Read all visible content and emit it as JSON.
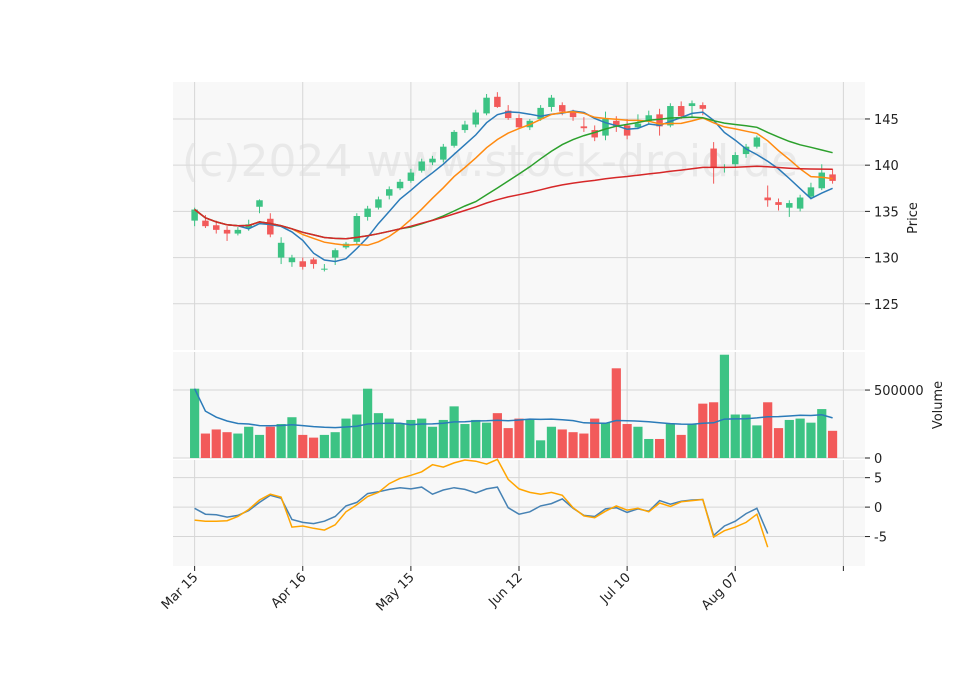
{
  "watermark": "(c)2024 www.stock-droid.de",
  "colors": {
    "up": "#3cc384",
    "down": "#f25a5a",
    "sma_blue": "#2b7bb9",
    "sma_orange": "#ff8a10",
    "sma_green": "#2ca02c",
    "sma_red": "#d62728",
    "vol_ma": "#2b7bb9",
    "osc_blue": "#4682b4",
    "osc_orange": "#ffa500",
    "panel_bg": "#f8f8f8",
    "grid": "#d6d6d6"
  },
  "chart_data": [
    {
      "type": "candlestick",
      "panel": "price",
      "ylabel": "Price",
      "ylim": [
        120,
        149
      ],
      "yticks": [
        125,
        130,
        135,
        140,
        145
      ],
      "xlim": [
        -2,
        62
      ],
      "x_tick_positions": [
        0,
        10,
        20,
        30,
        40,
        50,
        60
      ],
      "x_tick_labels": [
        "Mar 15",
        "Apr 16",
        "May 15",
        "Jun 12",
        "Jul 10",
        "Aug 07",
        ""
      ],
      "ohlc": [
        [
          0,
          134,
          135.4,
          133.4,
          135.2
        ],
        [
          1,
          134,
          134.6,
          133.2,
          133.4
        ],
        [
          2,
          133.5,
          134,
          132.6,
          133
        ],
        [
          3,
          133,
          133.4,
          131.8,
          132.6
        ],
        [
          4,
          132.6,
          133.3,
          132.4,
          133
        ],
        [
          5,
          133.2,
          134.1,
          132.9,
          133.6
        ],
        [
          6,
          135.5,
          136.3,
          134.8,
          136.2
        ],
        [
          7,
          134.2,
          134.8,
          132.2,
          132.5
        ],
        [
          8,
          130,
          132.2,
          129.3,
          131.6
        ],
        [
          9,
          129.5,
          130.3,
          129,
          130
        ],
        [
          10,
          129.6,
          130,
          128.7,
          129
        ],
        [
          11,
          129.8,
          130,
          128.8,
          129.3
        ],
        [
          12,
          128.8,
          129.3,
          128.5,
          128.8
        ],
        [
          13,
          130,
          131,
          129.2,
          130.8
        ],
        [
          14,
          131.1,
          131.7,
          130.9,
          131.5
        ],
        [
          15,
          131.7,
          134.8,
          131.4,
          134.5
        ],
        [
          16,
          134.4,
          135.6,
          134,
          135.3
        ],
        [
          17,
          135.4,
          136.6,
          135.2,
          136.3
        ],
        [
          18,
          136.7,
          137.7,
          136.3,
          137.4
        ],
        [
          19,
          137.5,
          138.5,
          137.3,
          138.2
        ],
        [
          20,
          138.3,
          139.6,
          138.1,
          139.2
        ],
        [
          21,
          139.4,
          140.7,
          139.2,
          140.4
        ],
        [
          22,
          140.3,
          141,
          140,
          140.7
        ],
        [
          23,
          140.6,
          142.3,
          140.3,
          142
        ],
        [
          24,
          142.1,
          143.8,
          141.9,
          143.6
        ],
        [
          25,
          143.8,
          144.8,
          143.5,
          144.4
        ],
        [
          26,
          144.4,
          146,
          144.1,
          145.7
        ],
        [
          27,
          145.6,
          147.7,
          145.4,
          147.3
        ],
        [
          28,
          147.4,
          147.9,
          146.2,
          146.3
        ],
        [
          29,
          145.9,
          146.5,
          144.9,
          145.1
        ],
        [
          30,
          145.1,
          145.5,
          143.9,
          144.1
        ],
        [
          31,
          144.1,
          145,
          143.8,
          144.8
        ],
        [
          32,
          145,
          146.5,
          144.8,
          146.2
        ],
        [
          33,
          146.3,
          147.6,
          145.8,
          147.3
        ],
        [
          34,
          146.5,
          146.8,
          145.4,
          145.8
        ],
        [
          35,
          145.8,
          146,
          144.8,
          145.2
        ],
        [
          36,
          144.2,
          145.2,
          143.6,
          144
        ],
        [
          37,
          143.8,
          144.3,
          142.6,
          143
        ],
        [
          38,
          143.2,
          145.8,
          142.7,
          145
        ],
        [
          39,
          144.8,
          145.3,
          143.6,
          144.2
        ],
        [
          40,
          144.3,
          145,
          142.8,
          143.2
        ],
        [
          41,
          144.1,
          145.5,
          143.9,
          144.5
        ],
        [
          42,
          144.8,
          145.9,
          144.4,
          145.4
        ],
        [
          43,
          145.5,
          146.1,
          143.2,
          144.2
        ],
        [
          44,
          144.3,
          146.7,
          144.1,
          146.4
        ],
        [
          45,
          146.4,
          146.9,
          145,
          145.3
        ],
        [
          46,
          146.4,
          147,
          145.2,
          146.7
        ],
        [
          47,
          146.5,
          146.8,
          145.4,
          146.1
        ],
        [
          48,
          141.8,
          142.5,
          138,
          139.8
        ],
        [
          49,
          139.7,
          140.1,
          139.2,
          139.8
        ],
        [
          50,
          140.1,
          141.4,
          139.7,
          141.1
        ],
        [
          51,
          141.2,
          142.3,
          140.8,
          142
        ],
        [
          52,
          142,
          143.2,
          141.8,
          143
        ],
        [
          53,
          136.5,
          137.8,
          135.5,
          136.2
        ],
        [
          54,
          136,
          136.4,
          135.1,
          135.7
        ],
        [
          55,
          135.4,
          136.2,
          134.4,
          135.9
        ],
        [
          56,
          135.3,
          136.8,
          135,
          136.5
        ],
        [
          57,
          136.6,
          138.1,
          136.3,
          137.6
        ],
        [
          58,
          137.5,
          140.1,
          137.3,
          139.2
        ],
        [
          59,
          139,
          139.6,
          138,
          138.3
        ]
      ]
    },
    {
      "type": "bar",
      "panel": "volume",
      "ylabel": "Volume",
      "ylim": [
        0,
        780000
      ],
      "yticks": [
        0,
        500000
      ],
      "volumes": [
        510000,
        180000,
        210000,
        190000,
        180000,
        230000,
        170000,
        230000,
        250000,
        300000,
        170000,
        150000,
        170000,
        190000,
        290000,
        320000,
        510000,
        330000,
        290000,
        250000,
        280000,
        290000,
        230000,
        280000,
        380000,
        250000,
        280000,
        260000,
        330000,
        220000,
        290000,
        280000,
        130000,
        230000,
        210000,
        190000,
        180000,
        290000,
        260000,
        660000,
        250000,
        230000,
        140000,
        140000,
        250000,
        170000,
        250000,
        400000,
        410000,
        760000,
        320000,
        320000,
        240000,
        410000,
        220000,
        280000,
        290000,
        260000,
        360000,
        200000
      ]
    },
    {
      "type": "line",
      "panel": "oscillator",
      "ylim": [
        -10,
        8
      ],
      "yticks": [
        -5,
        0,
        5
      ],
      "series": [
        {
          "values": [
            -0.2,
            -1.2,
            -1.3,
            -1.7,
            -1.4,
            -0.6,
            0.8,
            2,
            1.5,
            -2.1,
            -2.6,
            -2.8,
            -2.4,
            -1.6,
            0.2,
            0.8,
            2.3,
            2.6,
            3,
            3.3,
            3.1,
            3.4,
            2.2,
            2.9,
            3.3,
            3,
            2.4,
            3.1,
            3.4,
            -0.1,
            -1.2,
            -0.8,
            0.2,
            0.6,
            1.4,
            -0.2,
            -1.4,
            -1.6,
            -0.3,
            -0.1,
            -0.9,
            -0.3,
            -0.7,
            1.1,
            0.5,
            1,
            1.2,
            1.3,
            -4.8,
            -3.2,
            -2.4,
            -1.1,
            -0.2,
            -4.5
          ]
        },
        {
          "values": [
            -2.2,
            -2.4,
            -2.4,
            -2.3,
            -1.6,
            -0.4,
            1.2,
            2.2,
            1.7,
            -3.4,
            -3.2,
            -3.6,
            -3.9,
            -3,
            -0.8,
            0.4,
            1.8,
            2.5,
            4,
            4.9,
            5.4,
            6,
            7.2,
            6.8,
            7.5,
            8,
            7.8,
            7.3,
            8.1,
            4.7,
            3.1,
            2.5,
            2.2,
            2.5,
            2,
            -0.1,
            -1.5,
            -1.8,
            -0.7,
            0.2,
            -0.5,
            -0.2,
            -0.8,
            0.7,
            0.1,
            0.9,
            1.1,
            1.3,
            -5.1,
            -4,
            -3.4,
            -2.6,
            -1.2,
            -6.8
          ]
        }
      ]
    }
  ]
}
